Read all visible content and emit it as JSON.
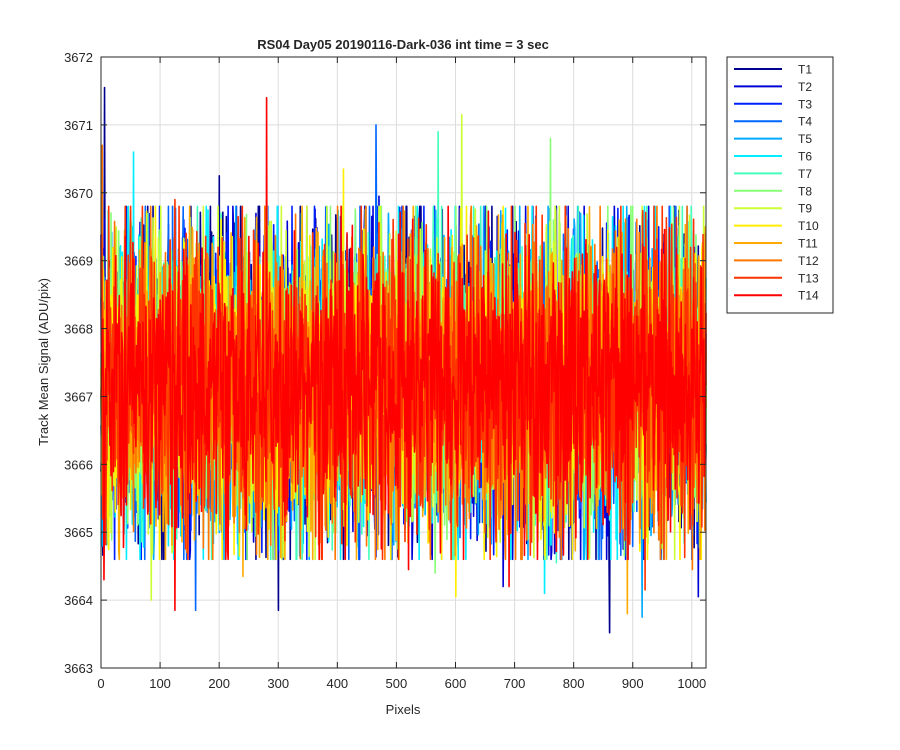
{
  "chart_data": {
    "type": "line",
    "title": "RS04 Day05 20190116-Dark-036 int time = 3 sec",
    "xlabel": "Pixels",
    "ylabel": "Track Mean Signal (ADU/pix)",
    "xlim": [
      0,
      1024
    ],
    "ylim": [
      3663,
      3672
    ],
    "xticks": [
      0,
      100,
      200,
      300,
      400,
      500,
      600,
      700,
      800,
      900,
      1000
    ],
    "yticks": [
      3663,
      3664,
      3665,
      3666,
      3667,
      3668,
      3669,
      3670,
      3671,
      3672
    ],
    "grid": true,
    "legend_position": "outside-right-top",
    "samples_per_series": 1024,
    "series": [
      {
        "name": "T1",
        "color": "#00008f",
        "mean": 3667.2,
        "std": 1.15,
        "seed": 11,
        "spikes": [
          [
            6,
            3671.55
          ],
          [
            200,
            3670.25
          ],
          [
            300,
            3663.85
          ],
          [
            860,
            3663.52
          ],
          [
            650,
            3664.95
          ]
        ]
      },
      {
        "name": "T2",
        "color": "#0000d6",
        "mean": 3667.2,
        "std": 1.1,
        "seed": 23,
        "spikes": [
          [
            470,
            3669.95
          ],
          [
            680,
            3664.2
          ],
          [
            1010,
            3664.05
          ]
        ]
      },
      {
        "name": "T3",
        "color": "#0020ff",
        "mean": 3667.2,
        "std": 1.1,
        "seed": 37,
        "spikes": [
          [
            140,
            3669.6
          ],
          [
            780,
            3664.75
          ]
        ]
      },
      {
        "name": "T4",
        "color": "#0066ff",
        "mean": 3667.2,
        "std": 1.1,
        "seed": 41,
        "spikes": [
          [
            465,
            3671.0
          ],
          [
            160,
            3663.85
          ]
        ]
      },
      {
        "name": "T5",
        "color": "#00aaff",
        "mean": 3667.2,
        "std": 1.1,
        "seed": 53,
        "spikes": [
          [
            915,
            3663.75
          ],
          [
            90,
            3664.95
          ]
        ]
      },
      {
        "name": "T6",
        "color": "#00eeff",
        "mean": 3667.2,
        "std": 1.1,
        "seed": 67,
        "spikes": [
          [
            55,
            3670.6
          ],
          [
            750,
            3664.1
          ]
        ]
      },
      {
        "name": "T7",
        "color": "#44ffbb",
        "mean": 3667.2,
        "std": 1.1,
        "seed": 71,
        "spikes": [
          [
            570,
            3670.9
          ],
          [
            770,
            3664.55
          ]
        ]
      },
      {
        "name": "T8",
        "color": "#88ff77",
        "mean": 3667.2,
        "std": 1.1,
        "seed": 83,
        "spikes": [
          [
            760,
            3670.8
          ],
          [
            565,
            3664.4
          ]
        ]
      },
      {
        "name": "T9",
        "color": "#ccff33",
        "mean": 3667.2,
        "std": 1.1,
        "seed": 97,
        "spikes": [
          [
            610,
            3671.15
          ],
          [
            85,
            3664.0
          ]
        ]
      },
      {
        "name": "T10",
        "color": "#ffee00",
        "mean": 3667.2,
        "std": 1.1,
        "seed": 101,
        "spikes": [
          [
            600,
            3664.05
          ],
          [
            410,
            3670.35
          ]
        ]
      },
      {
        "name": "T11",
        "color": "#ffaa00",
        "mean": 3667.2,
        "std": 1.1,
        "seed": 113,
        "spikes": [
          [
            240,
            3664.35
          ],
          [
            890,
            3663.8
          ]
        ]
      },
      {
        "name": "T12",
        "color": "#ff7700",
        "mean": 3667.2,
        "std": 1.1,
        "seed": 127,
        "spikes": [
          [
            2,
            3670.7
          ],
          [
            1000,
            3664.45
          ]
        ]
      },
      {
        "name": "T13",
        "color": "#ff3300",
        "mean": 3667.2,
        "std": 1.1,
        "seed": 131,
        "spikes": [
          [
            125,
            3669.9
          ],
          [
            920,
            3664.15
          ]
        ]
      },
      {
        "name": "T14",
        "color": "#ff0000",
        "mean": 3667.2,
        "std": 1.05,
        "seed": 139,
        "spikes": [
          [
            280,
            3671.4
          ],
          [
            125,
            3663.85
          ],
          [
            5,
            3664.3
          ],
          [
            520,
            3664.45
          ],
          [
            690,
            3664.2
          ]
        ]
      }
    ]
  }
}
